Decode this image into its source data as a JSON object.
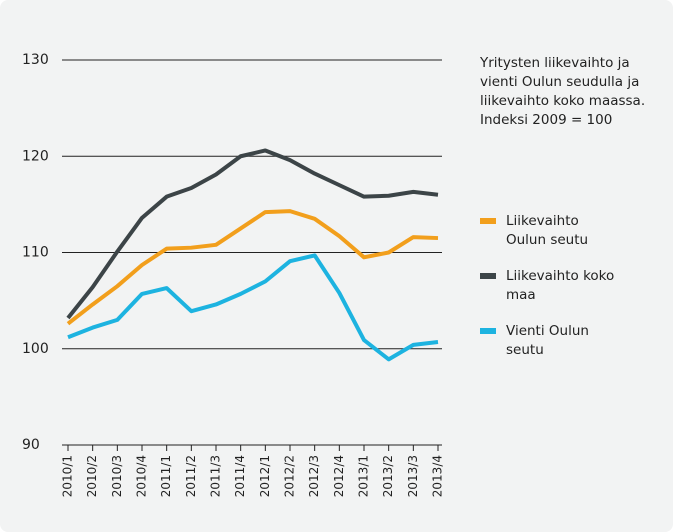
{
  "chart_data": {
    "type": "line",
    "title": "Yritysten liikevaihto ja vienti Oulun seudulla ja liikevaihto koko maassa. Indeksi 2009 = 100",
    "categories": [
      "2010/1",
      "2010/2",
      "2010/3",
      "2010/4",
      "2011/1",
      "2011/2",
      "2011/3",
      "2011/4",
      "2012/1",
      "2012/2",
      "2012/3",
      "2012/4",
      "2013/1",
      "2013/2",
      "2013/3",
      "2013/4"
    ],
    "series": [
      {
        "name": "Liikevaihto Oulun seutu",
        "color": "#f29f1c",
        "values": [
          102.6,
          104.6,
          106.5,
          108.7,
          110.4,
          110.5,
          110.8,
          112.5,
          114.2,
          114.3,
          113.5,
          111.7,
          109.5,
          110.0,
          111.6,
          111.5
        ]
      },
      {
        "name": "Liikevaihto koko maa",
        "color": "#3c4447",
        "values": [
          103.2,
          106.4,
          110.1,
          113.6,
          115.8,
          116.7,
          118.1,
          120.0,
          120.6,
          119.6,
          118.2,
          117.0,
          115.8,
          115.9,
          116.3,
          116.0
        ]
      },
      {
        "name": "Vienti Oulun seutu",
        "color": "#1db3e0",
        "values": [
          101.2,
          102.2,
          103.0,
          105.7,
          106.3,
          103.9,
          104.6,
          105.7,
          107.0,
          109.1,
          109.7,
          105.8,
          100.9,
          98.9,
          100.4,
          100.7
        ]
      }
    ],
    "ylim": [
      90,
      130
    ],
    "yticks": [
      90,
      100,
      110,
      120,
      130
    ],
    "grid": true
  }
}
